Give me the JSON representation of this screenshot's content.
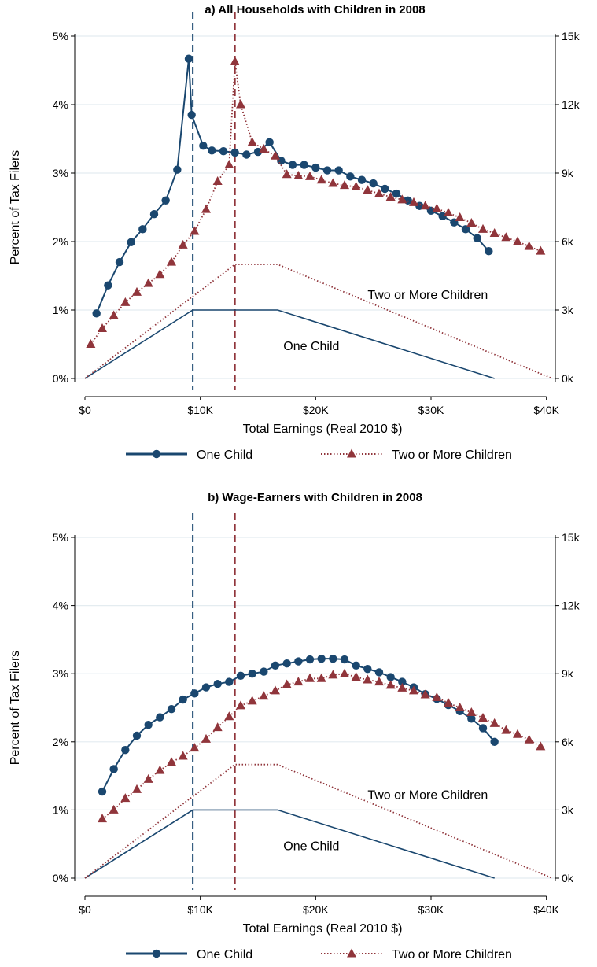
{
  "chart_data": [
    {
      "type": "line",
      "title": "a) All Households with Children in 2008",
      "xlabel": "Total Earnings (Real 2010 $)",
      "ylabel": "Percent of Tax Filers",
      "x_ticks": [
        "$0",
        "$10K",
        "$20K",
        "$30K",
        "$40K"
      ],
      "x_tick_values": [
        0,
        10000,
        20000,
        30000,
        40000
      ],
      "y_ticks": [
        "0%",
        "1%",
        "2%",
        "3%",
        "4%",
        "5%"
      ],
      "y_tick_values": [
        0,
        1,
        2,
        3,
        4,
        5
      ],
      "y2_ticks": [
        "0k",
        "3k",
        "6k",
        "9k",
        "12k",
        "15k"
      ],
      "y2_tick_values": [
        0,
        3000,
        6000,
        9000,
        12000,
        15000
      ],
      "xlim": [
        0,
        40500
      ],
      "ylim": [
        0,
        5.2
      ],
      "y2lim": [
        0,
        15600
      ],
      "grid": true,
      "legend_position": "bottom",
      "vlines": [
        {
          "x": 9350,
          "color": "#1a476f"
        },
        {
          "x": 13000,
          "color": "#90353b"
        }
      ],
      "curve_labels": [
        {
          "text": "Two or More Children",
          "x": 24500,
          "y": 1.23
        },
        {
          "text": "One Child",
          "x": 17200,
          "y": 0.48
        }
      ],
      "series": [
        {
          "name": "One Child",
          "color": "#1a476f",
          "marker": "circle",
          "line": "solid",
          "x": [
            1000,
            2000,
            3000,
            4000,
            5000,
            6000,
            7000,
            8000,
            9000,
            9250,
            10250,
            11000,
            12000,
            13000,
            14000,
            15000,
            16000,
            17000,
            18000,
            19000,
            20000,
            21000,
            22000,
            23000,
            24000,
            25000,
            26000,
            27000,
            28000,
            29000,
            30000,
            31000,
            32000,
            33000,
            34000,
            35000
          ],
          "y": [
            0.95,
            1.36,
            1.7,
            1.99,
            2.18,
            2.4,
            2.6,
            3.05,
            4.67,
            3.85,
            3.4,
            3.33,
            3.32,
            3.3,
            3.27,
            3.31,
            3.45,
            3.18,
            3.12,
            3.12,
            3.08,
            3.04,
            3.04,
            2.95,
            2.9,
            2.85,
            2.77,
            2.7,
            2.6,
            2.52,
            2.45,
            2.37,
            2.28,
            2.18,
            2.05,
            1.86
          ]
        },
        {
          "name": "Two or More Children",
          "color": "#90353b",
          "marker": "triangle",
          "line": "dotted",
          "x": [
            500,
            1500,
            2500,
            3500,
            4500,
            5500,
            6500,
            7500,
            8500,
            9500,
            10500,
            11500,
            12500,
            13000,
            13500,
            14500,
            15500,
            16500,
            17500,
            18500,
            19500,
            20500,
            21500,
            22500,
            23500,
            24500,
            25500,
            26500,
            27500,
            28500,
            29500,
            30500,
            31500,
            32500,
            33500,
            34500,
            35500,
            36500,
            37500,
            38500,
            39500
          ],
          "y": [
            0.5,
            0.73,
            0.92,
            1.11,
            1.26,
            1.39,
            1.52,
            1.7,
            1.95,
            2.15,
            2.47,
            2.88,
            3.12,
            4.63,
            4,
            3.45,
            3.35,
            3.25,
            2.98,
            2.96,
            2.95,
            2.9,
            2.85,
            2.82,
            2.8,
            2.75,
            2.7,
            2.65,
            2.61,
            2.57,
            2.52,
            2.48,
            2.42,
            2.35,
            2.27,
            2.18,
            2.12,
            2.06,
            2,
            1.93,
            1.86
          ]
        },
        {
          "name": "One Child schedule",
          "color": "#1a476f",
          "marker": "none",
          "line": "solid",
          "axis": "right",
          "x": [
            0,
            9350,
            16700,
            35500
          ],
          "y": [
            0,
            3000,
            3000,
            0
          ]
        },
        {
          "name": "Two or More Children schedule",
          "color": "#90353b",
          "marker": "none",
          "line": "dotted",
          "axis": "right",
          "x": [
            0,
            13000,
            16700,
            40500
          ],
          "y": [
            0,
            5000,
            5000,
            0
          ]
        }
      ]
    },
    {
      "type": "line",
      "title": "b) Wage-Earners with Children in 2008",
      "xlabel": "Total Earnings (Real 2010 $)",
      "ylabel": "Percent of Tax Filers",
      "x_ticks": [
        "$0",
        "$10K",
        "$20K",
        "$30K",
        "$40K"
      ],
      "x_tick_values": [
        0,
        10000,
        20000,
        30000,
        40000
      ],
      "y_ticks": [
        "0%",
        "1%",
        "2%",
        "3%",
        "4%",
        "5%"
      ],
      "y_tick_values": [
        0,
        1,
        2,
        3,
        4,
        5
      ],
      "y2_ticks": [
        "0k",
        "3k",
        "6k",
        "9k",
        "12k",
        "15k"
      ],
      "y2_tick_values": [
        0,
        3000,
        6000,
        9000,
        12000,
        15000
      ],
      "xlim": [
        0,
        40500
      ],
      "ylim": [
        0,
        5.2
      ],
      "y2lim": [
        0,
        15600
      ],
      "grid": true,
      "legend_position": "bottom",
      "vlines": [
        {
          "x": 9350,
          "color": "#1a476f"
        },
        {
          "x": 13000,
          "color": "#90353b"
        }
      ],
      "curve_labels": [
        {
          "text": "Two or More Children",
          "x": 24500,
          "y": 1.23
        },
        {
          "text": "One Child",
          "x": 17200,
          "y": 0.48
        }
      ],
      "series": [
        {
          "name": "One Child",
          "color": "#1a476f",
          "marker": "circle",
          "line": "solid",
          "x": [
            1500,
            2500,
            3500,
            4500,
            5500,
            6500,
            7500,
            8500,
            9500,
            10500,
            11500,
            12500,
            13500,
            14500,
            15500,
            16500,
            17500,
            18500,
            19500,
            20500,
            21500,
            22500,
            23500,
            24500,
            25500,
            26500,
            27500,
            28500,
            29500,
            30500,
            31500,
            32500,
            33500,
            34500,
            35500
          ],
          "y": [
            1.27,
            1.6,
            1.88,
            2.09,
            2.25,
            2.36,
            2.48,
            2.62,
            2.71,
            2.8,
            2.85,
            2.88,
            2.97,
            3,
            3.03,
            3.12,
            3.15,
            3.18,
            3.21,
            3.22,
            3.22,
            3.21,
            3.12,
            3.07,
            3.02,
            2.95,
            2.88,
            2.8,
            2.7,
            2.63,
            2.54,
            2.45,
            2.34,
            2.2,
            2
          ]
        },
        {
          "name": "Two or More Children",
          "color": "#90353b",
          "marker": "triangle",
          "line": "dotted",
          "x": [
            1500,
            2500,
            3500,
            4500,
            5500,
            6500,
            7500,
            8500,
            9500,
            10500,
            11500,
            12500,
            13500,
            14500,
            15500,
            16500,
            17500,
            18500,
            19500,
            20500,
            21500,
            22500,
            23500,
            24500,
            25500,
            26500,
            27500,
            28500,
            29500,
            30500,
            31500,
            32500,
            33500,
            34500,
            35500,
            36500,
            37500,
            38500,
            39500
          ],
          "y": [
            0.87,
            1,
            1.17,
            1.3,
            1.45,
            1.58,
            1.7,
            1.79,
            1.91,
            2.04,
            2.21,
            2.37,
            2.53,
            2.6,
            2.67,
            2.75,
            2.84,
            2.88,
            2.93,
            2.93,
            2.98,
            3,
            2.95,
            2.91,
            2.88,
            2.83,
            2.79,
            2.75,
            2.69,
            2.65,
            2.57,
            2.5,
            2.43,
            2.35,
            2.27,
            2.17,
            2.11,
            2.03,
            1.93
          ]
        },
        {
          "name": "One Child schedule",
          "color": "#1a476f",
          "marker": "none",
          "line": "solid",
          "axis": "right",
          "x": [
            0,
            9350,
            16700,
            35500
          ],
          "y": [
            0,
            3000,
            3000,
            0
          ]
        },
        {
          "name": "Two or More Children schedule",
          "color": "#90353b",
          "marker": "none",
          "line": "dotted",
          "axis": "right",
          "x": [
            0,
            13000,
            16700,
            40500
          ],
          "y": [
            0,
            5000,
            5000,
            0
          ]
        }
      ]
    }
  ],
  "legend": {
    "items": [
      {
        "label": "One Child",
        "color": "#1a476f",
        "marker": "circle",
        "line": "solid"
      },
      {
        "label": "Two or More Children",
        "color": "#90353b",
        "marker": "triangle",
        "line": "dotted"
      }
    ]
  },
  "colors": {
    "one_child": "#1a476f",
    "two_children": "#90353b",
    "grid": "#e4ecf0"
  }
}
